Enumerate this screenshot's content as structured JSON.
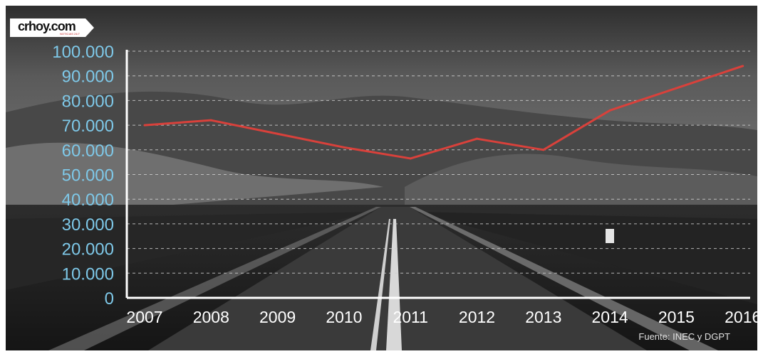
{
  "logo": {
    "text": "crhoy.com",
    "subtext": "NOTICIAS 24/7",
    "accent_color": "#c62828"
  },
  "source_note": "Fuente: INEC y DGPT",
  "colors": {
    "line": "#d9413b",
    "y_tick_text": "#7ec8e8",
    "x_tick_text": "#ffffff",
    "axis": "#ffffff",
    "grid": "#cfcfcf"
  },
  "chart_data": {
    "type": "line",
    "title": "",
    "xlabel": "",
    "ylabel": "",
    "categories": [
      "2007",
      "2008",
      "2009",
      "2010",
      "2011",
      "2012",
      "2013",
      "2014",
      "2015",
      "2016"
    ],
    "series": [
      {
        "values": [
          70000,
          72000,
          66500,
          61000,
          56500,
          64500,
          60000,
          76000,
          85000,
          94000
        ]
      }
    ],
    "ylim": [
      0,
      100000
    ],
    "yticks": [
      0,
      10000,
      20000,
      30000,
      40000,
      50000,
      60000,
      70000,
      80000,
      90000,
      100000
    ],
    "ytick_labels": [
      "0",
      "10.000",
      "20.000",
      "30.000",
      "40.000",
      "50.000",
      "60.000",
      "70.000",
      "80.000",
      "90.000",
      "100.000"
    ],
    "grid": true,
    "grid_style": "dashed",
    "legend": "none"
  }
}
